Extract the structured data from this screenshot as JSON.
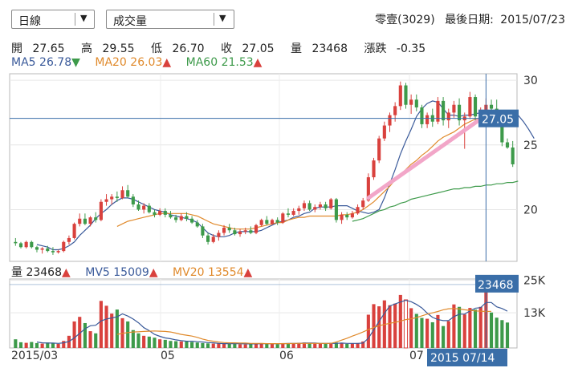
{
  "controls": {
    "period_select": "日線",
    "indicator_select": "成交量"
  },
  "header": {
    "stock": "零壹(3029)",
    "last_date_label": "最後日期:",
    "last_date": "2015/07/23"
  },
  "ohlc": {
    "open_label": "開",
    "open": "27.65",
    "high_label": "高",
    "high": "29.55",
    "low_label": "低",
    "low": "26.70",
    "close_label": "收",
    "close": "27.05",
    "volume_label": "量",
    "volume": "23468",
    "change_label": "漲跌",
    "change": "-0.35"
  },
  "ma_legend": {
    "ma5_label": "MA5",
    "ma5": "26.78",
    "ma20_label": "MA20",
    "ma20": "26.03",
    "ma60_label": "MA60",
    "ma60": "21.53"
  },
  "vol_legend": {
    "vol_label": "量",
    "vol": "23468",
    "mv5_label": "MV5",
    "mv5": "15009",
    "mv20_label": "MV20",
    "mv20": "13554"
  },
  "colors": {
    "up": "#d9413d",
    "down": "#3d9a4a",
    "ma5": "#3a5a9a",
    "ma20": "#e08a2c",
    "ma60": "#3d9a4a",
    "badge": "#3a6ea8",
    "arrow": "#f2a6c8"
  },
  "chart_data": [
    {
      "type": "candlestick",
      "x_ticks": [
        "2015/03",
        "05",
        "06",
        "07"
      ],
      "y_ticks": [
        30,
        25,
        20
      ],
      "ylim": [
        16,
        30.5
      ],
      "crosshair_label": "27.05",
      "candles": [
        [
          17.5,
          17.8,
          17.2,
          17.4
        ],
        [
          17.4,
          17.5,
          17.0,
          17.1
        ],
        [
          17.1,
          17.6,
          17.0,
          17.5
        ],
        [
          17.5,
          17.6,
          17.0,
          17.1
        ],
        [
          17.1,
          17.2,
          16.7,
          16.9
        ],
        [
          16.9,
          17.1,
          16.6,
          17.0
        ],
        [
          17.0,
          17.2,
          16.7,
          16.8
        ],
        [
          16.8,
          17.1,
          16.5,
          16.7
        ],
        [
          16.7,
          16.9,
          16.6,
          16.8
        ],
        [
          16.8,
          17.6,
          16.7,
          17.5
        ],
        [
          17.5,
          18.0,
          17.3,
          17.8
        ],
        [
          17.8,
          19.0,
          17.7,
          18.9
        ],
        [
          18.9,
          19.7,
          18.7,
          19.3
        ],
        [
          19.3,
          19.7,
          18.8,
          18.9
        ],
        [
          18.9,
          19.5,
          18.7,
          19.4
        ],
        [
          19.4,
          19.8,
          19.0,
          19.2
        ],
        [
          19.2,
          20.8,
          19.1,
          20.6
        ],
        [
          20.6,
          21.2,
          20.3,
          20.8
        ],
        [
          20.8,
          21.2,
          20.4,
          21.0
        ],
        [
          21.0,
          21.4,
          20.6,
          20.9
        ],
        [
          20.9,
          21.8,
          20.8,
          21.5
        ],
        [
          21.5,
          21.9,
          20.9,
          21.0
        ],
        [
          21.0,
          21.2,
          20.2,
          20.4
        ],
        [
          20.4,
          20.7,
          19.9,
          20.0
        ],
        [
          20.0,
          20.5,
          19.7,
          20.3
        ],
        [
          20.3,
          20.5,
          19.7,
          19.8
        ],
        [
          19.8,
          20.0,
          19.4,
          19.6
        ],
        [
          19.6,
          20.1,
          19.5,
          19.9
        ],
        [
          19.9,
          20.1,
          19.4,
          19.6
        ],
        [
          19.6,
          19.9,
          19.3,
          19.4
        ],
        [
          19.4,
          19.6,
          19.0,
          19.2
        ],
        [
          19.2,
          19.7,
          19.1,
          19.5
        ],
        [
          19.5,
          19.8,
          19.1,
          19.3
        ],
        [
          19.3,
          19.5,
          18.9,
          19.0
        ],
        [
          19.0,
          19.2,
          18.6,
          18.7
        ],
        [
          18.7,
          18.9,
          17.8,
          18.0
        ],
        [
          18.0,
          18.2,
          17.3,
          17.5
        ],
        [
          17.5,
          18.1,
          17.4,
          17.9
        ],
        [
          17.9,
          18.4,
          17.6,
          18.2
        ],
        [
          18.2,
          18.8,
          18.0,
          18.6
        ],
        [
          18.6,
          18.9,
          18.2,
          18.4
        ],
        [
          18.4,
          18.6,
          18.0,
          18.1
        ],
        [
          18.1,
          18.5,
          17.9,
          18.3
        ],
        [
          18.3,
          18.6,
          18.1,
          18.4
        ],
        [
          18.4,
          18.7,
          18.1,
          18.2
        ],
        [
          18.2,
          18.9,
          18.1,
          18.8
        ],
        [
          18.8,
          19.3,
          18.7,
          19.2
        ],
        [
          19.2,
          19.5,
          18.8,
          18.9
        ],
        [
          18.9,
          19.3,
          18.8,
          19.2
        ],
        [
          19.2,
          19.4,
          18.8,
          19.0
        ],
        [
          19.0,
          19.8,
          18.9,
          19.7
        ],
        [
          19.7,
          20.1,
          19.4,
          19.6
        ],
        [
          19.6,
          20.1,
          19.5,
          19.9
        ],
        [
          19.9,
          20.3,
          19.6,
          20.1
        ],
        [
          20.1,
          20.7,
          19.9,
          20.5
        ],
        [
          20.5,
          20.7,
          19.9,
          20.0
        ],
        [
          20.0,
          20.4,
          19.8,
          20.2
        ],
        [
          20.2,
          20.6,
          20.0,
          20.4
        ],
        [
          20.4,
          20.6,
          19.9,
          20.1
        ],
        [
          20.1,
          20.9,
          20.0,
          20.8
        ],
        [
          20.8,
          20.9,
          19.0,
          19.2
        ],
        [
          19.2,
          19.8,
          18.9,
          19.6
        ],
        [
          19.6,
          19.8,
          19.2,
          19.4
        ],
        [
          19.4,
          19.9,
          19.3,
          19.7
        ],
        [
          19.7,
          20.4,
          19.6,
          20.2
        ],
        [
          20.2,
          20.9,
          20.0,
          20.7
        ],
        [
          20.7,
          22.8,
          20.6,
          22.5
        ],
        [
          22.5,
          24.0,
          22.3,
          23.8
        ],
        [
          23.8,
          25.7,
          23.6,
          25.5
        ],
        [
          25.5,
          26.8,
          25.3,
          26.5
        ],
        [
          26.5,
          27.5,
          26.0,
          27.3
        ],
        [
          27.3,
          28.3,
          26.8,
          28.0
        ],
        [
          28.0,
          29.9,
          27.7,
          29.6
        ],
        [
          29.6,
          29.8,
          27.8,
          28.1
        ],
        [
          28.1,
          28.9,
          27.4,
          28.5
        ],
        [
          28.5,
          28.9,
          27.6,
          27.9
        ],
        [
          27.9,
          28.1,
          26.3,
          26.6
        ],
        [
          26.6,
          27.5,
          26.3,
          27.3
        ],
        [
          27.3,
          27.8,
          26.4,
          26.8
        ],
        [
          26.8,
          28.7,
          26.6,
          28.4
        ],
        [
          28.4,
          28.7,
          26.5,
          26.9
        ],
        [
          26.9,
          27.8,
          26.3,
          27.5
        ],
        [
          27.5,
          28.4,
          27.1,
          28.1
        ],
        [
          28.1,
          28.6,
          26.5,
          26.9
        ],
        [
          26.9,
          27.5,
          24.7,
          27.2
        ],
        [
          27.2,
          29.1,
          27.0,
          28.7
        ],
        [
          28.7,
          28.9,
          26.7,
          27.2
        ],
        [
          27.2,
          27.9,
          26.6,
          27.5
        ],
        [
          27.5,
          28.6,
          27.1,
          28.1
        ],
        [
          28.1,
          28.5,
          27.3,
          27.8
        ],
        [
          27.8,
          28.5,
          26.7,
          27.05
        ],
        [
          27.05,
          27.4,
          24.9,
          25.2
        ],
        [
          25.2,
          25.5,
          24.7,
          24.8
        ],
        [
          24.8,
          25.3,
          23.3,
          23.5
        ]
      ],
      "series": [
        {
          "name": "MA5",
          "values_from_index": 4,
          "values": [
            17.3,
            17.2,
            17.1,
            16.9,
            16.9,
            17.0,
            17.2,
            17.5,
            18.0,
            18.4,
            18.8,
            19.3,
            19.7,
            20.0,
            20.4,
            20.7,
            20.9,
            20.9,
            20.8,
            20.6,
            20.4,
            20.2,
            20.0,
            19.9,
            19.8,
            19.6,
            19.5,
            19.4,
            19.3,
            19.2,
            19.0,
            18.6,
            18.2,
            18.0,
            17.9,
            17.9,
            18.0,
            18.2,
            18.3,
            18.3,
            18.3,
            18.3,
            18.4,
            18.6,
            18.8,
            19.0,
            19.1,
            19.2,
            19.4,
            19.5,
            19.7,
            19.8,
            20.1,
            20.2,
            20.2,
            20.2,
            20.3,
            20.3,
            20.3,
            20.1,
            19.9,
            19.8,
            19.7,
            19.8,
            20.0,
            20.9,
            22.0,
            23.1,
            24.3,
            25.3,
            26.2,
            27.2,
            27.8,
            28.2,
            28.4,
            28.3,
            27.8,
            27.3,
            27.3,
            27.2,
            27.3,
            27.3,
            27.4,
            27.5,
            27.6,
            27.7,
            27.6,
            27.6,
            27.5,
            27.5,
            27.3,
            26.8,
            26.2,
            25.5
          ]
        },
        {
          "name": "MA20",
          "values_from_index": 19,
          "values": [
            18.7,
            18.9,
            19.1,
            19.2,
            19.3,
            19.4,
            19.5,
            19.6,
            19.7,
            19.7,
            19.7,
            19.7,
            19.7,
            19.7,
            19.6,
            19.5,
            19.3,
            19.1,
            18.9,
            18.8,
            18.7,
            18.6,
            18.5,
            18.5,
            18.5,
            18.5,
            18.6,
            18.7,
            18.8,
            18.9,
            19.0,
            19.0,
            19.2,
            19.3,
            19.4,
            19.4,
            19.5,
            19.5,
            19.5,
            19.5,
            19.5,
            19.5,
            19.6,
            19.6,
            19.7,
            19.8,
            20.0,
            20.3,
            20.6,
            21.0,
            21.4,
            21.8,
            22.3,
            22.7,
            23.1,
            23.5,
            23.8,
            24.2,
            24.5,
            24.9,
            25.3,
            25.6,
            25.8,
            26.0,
            26.3,
            26.6,
            26.8,
            27.0,
            27.1,
            27.2,
            27.2,
            27.1,
            27.0,
            26.9,
            26.7,
            26.4
          ]
        },
        {
          "name": "MA60",
          "values_from_index": 63,
          "values": [
            19.1,
            19.2,
            19.3,
            19.5,
            19.7,
            19.9,
            20.0,
            20.2,
            20.3,
            20.5,
            20.6,
            20.8,
            20.9,
            21.0,
            21.1,
            21.2,
            21.3,
            21.4,
            21.5,
            21.6,
            21.6,
            21.7,
            21.7,
            21.8,
            21.8,
            21.9,
            21.9,
            22.0,
            22.0,
            22.1,
            22.1,
            22.2
          ]
        }
      ]
    },
    {
      "type": "bar",
      "y_ticks": [
        "25K",
        "13K"
      ],
      "ylim": [
        0,
        25500
      ],
      "crosshair_label": "23468",
      "date_label": "2015 07/14",
      "volumes": [
        3200,
        2100,
        1900,
        2200,
        1800,
        1600,
        2000,
        1700,
        1500,
        2600,
        4500,
        9800,
        11500,
        9200,
        6200,
        5400,
        17400,
        15600,
        12700,
        14200,
        11000,
        9800,
        6600,
        5400,
        4500,
        4200,
        3800,
        3200,
        3000,
        2600,
        2500,
        2400,
        2600,
        2200,
        2000,
        1800,
        1700,
        1600,
        1800,
        1700,
        1500,
        1600,
        1400,
        1300,
        1700,
        1500,
        1800,
        1600,
        1500,
        1400,
        1800,
        1700,
        1600,
        1900,
        2000,
        1800,
        1600,
        1700,
        1500,
        1900,
        2000,
        1700,
        1500,
        1600,
        1800,
        2400,
        12300,
        16200,
        15400,
        17600,
        15800,
        16400,
        19600,
        17800,
        14700,
        12600,
        11100,
        10800,
        9500,
        12200,
        8100,
        9900,
        16100,
        15200,
        12400,
        14800,
        14200,
        15200,
        23468,
        13100,
        11200,
        10300,
        9400
      ],
      "series": [
        {
          "name": "MV5",
          "values_from_index": 4,
          "values": [
            2200,
            1900,
            1800,
            1800,
            1700,
            1900,
            2400,
            3700,
            5400,
            7100,
            8200,
            8400,
            10000,
            10700,
            11100,
            11500,
            12600,
            11800,
            10700,
            9300,
            7500,
            6400,
            5000,
            4300,
            3700,
            3400,
            3000,
            2700,
            2500,
            2500,
            2300,
            2200,
            2000,
            1900,
            1700,
            1600,
            1600,
            1600,
            1600,
            1500,
            1500,
            1500,
            1600,
            1600,
            1600,
            1600,
            1600,
            1700,
            1700,
            1700,
            1800,
            1800,
            1800,
            1700,
            1700,
            1700,
            1700,
            1800,
            1700,
            1700,
            1700,
            1800,
            3600,
            6700,
            9800,
            12800,
            15500,
            16300,
            17000,
            17600,
            17100,
            16100,
            14800,
            12900,
            11300,
            10500,
            10100,
            10100,
            11600,
            12500,
            12500,
            13700,
            14700,
            14900,
            16800,
            16800,
            15200,
            14600,
            13600
          ]
        },
        {
          "name": "MV20",
          "values_from_index": 19,
          "values": [
            5000,
            5400,
            5700,
            5900,
            6000,
            6100,
            6200,
            6300,
            6200,
            6100,
            5900,
            5500,
            5000,
            4700,
            4400,
            3900,
            3300,
            2800,
            2500,
            2200,
            2000,
            1900,
            1900,
            1800,
            1800,
            1700,
            1700,
            1700,
            1600,
            1600,
            1600,
            1600,
            1600,
            1700,
            1700,
            1700,
            1700,
            1700,
            1700,
            1700,
            1700,
            2200,
            2900,
            3600,
            4400,
            5100,
            5900,
            6800,
            7600,
            8200,
            8700,
            9100,
            9500,
            9900,
            10500,
            10800,
            11200,
            11900,
            12500,
            13000,
            13500,
            14100,
            14500,
            14600,
            14400,
            14100,
            13900,
            13700,
            13600,
            13500,
            13554
          ]
        }
      ]
    }
  ]
}
